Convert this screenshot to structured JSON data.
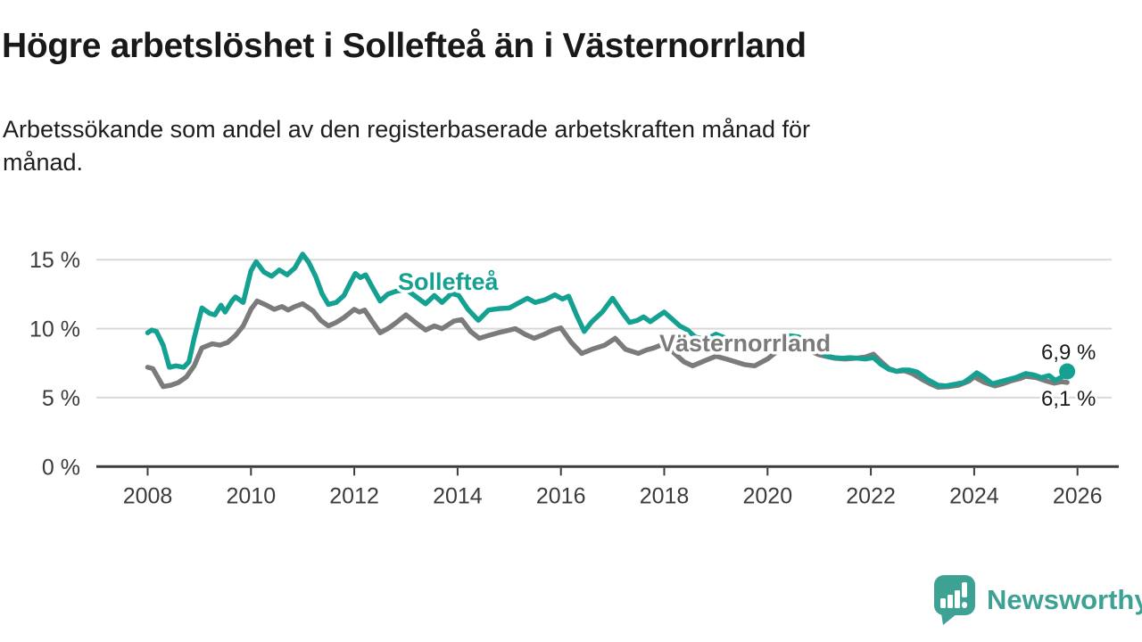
{
  "header": {
    "title": "Högre arbetslöshet i Sollefteå än i Västernorrland",
    "subtitle_line1": "Arbetssökande som andel av den registerbaserade arbetskraften månad för",
    "subtitle_line2": "månad."
  },
  "branding": {
    "logo_text": "Newsworthy",
    "logo_icon": "newsworthy-speech-bubble-bar-chart-icon",
    "logo_color": "#3da294"
  },
  "chart_data": {
    "type": "line",
    "title": "Högre arbetslöshet i Sollefteå än i Västernorrland",
    "subtitle": "Arbetssökande som andel av den registerbaserade arbetskraften månad för månad.",
    "unit": "%",
    "grid": true,
    "legend_position": "inline-labels",
    "xlim": [
      2008,
      2026.3
    ],
    "ylim": [
      0,
      16.8
    ],
    "x_axis": {
      "ticks": [
        2008,
        2010,
        2012,
        2014,
        2016,
        2018,
        2020,
        2022,
        2024,
        2026
      ],
      "tick_labels": [
        "2008",
        "2010",
        "2012",
        "2014",
        "2016",
        "2018",
        "2020",
        "2022",
        "2024",
        "2026"
      ]
    },
    "y_axis": {
      "ticks": [
        0,
        5,
        10,
        15
      ],
      "tick_labels": [
        "0 %",
        "5 %",
        "10 %",
        "15 %"
      ]
    },
    "colors": {
      "solleftea": "#14a191",
      "vasternorrland": "#7b7b7b",
      "gridline": "#d9d9d9",
      "axis": "#3c3c3c",
      "end_label_text": "#1b1b1b"
    },
    "series": [
      {
        "name": "Västernorrland",
        "color": "#7b7b7b",
        "end_label": "6,1 %",
        "end_dot": false,
        "points": [
          [
            2008.0,
            7.2
          ],
          [
            2008.1,
            7.1
          ],
          [
            2008.3,
            5.8
          ],
          [
            2008.45,
            5.9
          ],
          [
            2008.6,
            6.1
          ],
          [
            2008.75,
            6.5
          ],
          [
            2008.9,
            7.3
          ],
          [
            2009.05,
            8.6
          ],
          [
            2009.25,
            8.9
          ],
          [
            2009.4,
            8.8
          ],
          [
            2009.55,
            9.0
          ],
          [
            2009.7,
            9.5
          ],
          [
            2009.85,
            10.2
          ],
          [
            2010.0,
            11.4
          ],
          [
            2010.12,
            12.0
          ],
          [
            2010.3,
            11.7
          ],
          [
            2010.45,
            11.4
          ],
          [
            2010.6,
            11.6
          ],
          [
            2010.72,
            11.35
          ],
          [
            2010.85,
            11.6
          ],
          [
            2011.0,
            11.8
          ],
          [
            2011.2,
            11.3
          ],
          [
            2011.35,
            10.6
          ],
          [
            2011.5,
            10.2
          ],
          [
            2011.65,
            10.45
          ],
          [
            2011.8,
            10.8
          ],
          [
            2012.0,
            11.4
          ],
          [
            2012.1,
            11.2
          ],
          [
            2012.2,
            11.35
          ],
          [
            2012.35,
            10.5
          ],
          [
            2012.5,
            9.7
          ],
          [
            2012.65,
            10.0
          ],
          [
            2012.8,
            10.4
          ],
          [
            2013.0,
            11.0
          ],
          [
            2013.2,
            10.4
          ],
          [
            2013.38,
            9.9
          ],
          [
            2013.55,
            10.2
          ],
          [
            2013.7,
            10.0
          ],
          [
            2013.93,
            10.55
          ],
          [
            2014.08,
            10.65
          ],
          [
            2014.25,
            9.8
          ],
          [
            2014.42,
            9.3
          ],
          [
            2014.6,
            9.5
          ],
          [
            2014.78,
            9.7
          ],
          [
            2014.95,
            9.85
          ],
          [
            2015.12,
            10.0
          ],
          [
            2015.3,
            9.6
          ],
          [
            2015.48,
            9.3
          ],
          [
            2015.68,
            9.6
          ],
          [
            2015.85,
            9.9
          ],
          [
            2016.0,
            10.05
          ],
          [
            2016.2,
            9.0
          ],
          [
            2016.4,
            8.2
          ],
          [
            2016.6,
            8.5
          ],
          [
            2016.85,
            8.8
          ],
          [
            2017.05,
            9.3
          ],
          [
            2017.25,
            8.5
          ],
          [
            2017.5,
            8.2
          ],
          [
            2017.65,
            8.45
          ],
          [
            2017.8,
            8.6
          ],
          [
            2018.0,
            8.9
          ],
          [
            2018.2,
            8.2
          ],
          [
            2018.38,
            7.6
          ],
          [
            2018.55,
            7.3
          ],
          [
            2018.8,
            7.7
          ],
          [
            2019.0,
            8.0
          ],
          [
            2019.2,
            7.8
          ],
          [
            2019.55,
            7.4
          ],
          [
            2019.75,
            7.3
          ],
          [
            2020.0,
            7.8
          ],
          [
            2020.3,
            8.7
          ],
          [
            2020.5,
            8.9
          ],
          [
            2020.7,
            8.6
          ],
          [
            2021.0,
            8.1
          ],
          [
            2021.3,
            7.85
          ],
          [
            2021.5,
            7.8
          ],
          [
            2021.7,
            7.85
          ],
          [
            2021.9,
            7.95
          ],
          [
            2022.05,
            8.15
          ],
          [
            2022.2,
            7.6
          ],
          [
            2022.35,
            7.1
          ],
          [
            2022.5,
            6.9
          ],
          [
            2022.65,
            6.95
          ],
          [
            2022.8,
            6.75
          ],
          [
            2023.0,
            6.3
          ],
          [
            2023.15,
            6.0
          ],
          [
            2023.3,
            5.75
          ],
          [
            2023.5,
            5.8
          ],
          [
            2023.7,
            5.9
          ],
          [
            2023.9,
            6.2
          ],
          [
            2024.0,
            6.5
          ],
          [
            2024.2,
            6.1
          ],
          [
            2024.4,
            5.85
          ],
          [
            2024.55,
            6.0
          ],
          [
            2024.7,
            6.2
          ],
          [
            2024.9,
            6.4
          ],
          [
            2025.0,
            6.55
          ],
          [
            2025.2,
            6.45
          ],
          [
            2025.4,
            6.2
          ],
          [
            2025.55,
            6.05
          ],
          [
            2025.7,
            6.15
          ],
          [
            2025.8,
            6.1
          ]
        ]
      },
      {
        "name": "Sollefteå",
        "color": "#14a191",
        "end_label": "6,9 %",
        "end_dot": true,
        "points": [
          [
            2008.0,
            9.7
          ],
          [
            2008.08,
            9.9
          ],
          [
            2008.17,
            9.8
          ],
          [
            2008.3,
            8.8
          ],
          [
            2008.42,
            7.2
          ],
          [
            2008.55,
            7.3
          ],
          [
            2008.7,
            7.2
          ],
          [
            2008.8,
            7.6
          ],
          [
            2008.9,
            9.3
          ],
          [
            2009.05,
            11.5
          ],
          [
            2009.2,
            11.1
          ],
          [
            2009.3,
            11.0
          ],
          [
            2009.42,
            11.7
          ],
          [
            2009.5,
            11.2
          ],
          [
            2009.63,
            12.0
          ],
          [
            2009.7,
            12.3
          ],
          [
            2009.85,
            11.9
          ],
          [
            2010.0,
            14.2
          ],
          [
            2010.1,
            14.85
          ],
          [
            2010.25,
            14.1
          ],
          [
            2010.4,
            13.8
          ],
          [
            2010.55,
            14.25
          ],
          [
            2010.7,
            13.9
          ],
          [
            2010.85,
            14.4
          ],
          [
            2011.0,
            15.4
          ],
          [
            2011.12,
            14.8
          ],
          [
            2011.25,
            13.8
          ],
          [
            2011.38,
            12.5
          ],
          [
            2011.5,
            11.75
          ],
          [
            2011.65,
            11.9
          ],
          [
            2011.8,
            12.4
          ],
          [
            2011.92,
            13.3
          ],
          [
            2012.02,
            14.0
          ],
          [
            2012.12,
            13.7
          ],
          [
            2012.22,
            13.9
          ],
          [
            2012.35,
            13.0
          ],
          [
            2012.5,
            12.0
          ],
          [
            2012.65,
            12.5
          ],
          [
            2012.8,
            12.7
          ],
          [
            2013.0,
            12.85
          ],
          [
            2013.2,
            12.3
          ],
          [
            2013.38,
            11.8
          ],
          [
            2013.55,
            12.4
          ],
          [
            2013.7,
            11.9
          ],
          [
            2013.88,
            12.55
          ],
          [
            2014.02,
            12.4
          ],
          [
            2014.2,
            11.4
          ],
          [
            2014.4,
            10.6
          ],
          [
            2014.6,
            11.35
          ],
          [
            2014.8,
            11.45
          ],
          [
            2015.0,
            11.5
          ],
          [
            2015.2,
            11.9
          ],
          [
            2015.35,
            12.2
          ],
          [
            2015.5,
            11.9
          ],
          [
            2015.7,
            12.1
          ],
          [
            2015.88,
            12.45
          ],
          [
            2016.03,
            12.15
          ],
          [
            2016.15,
            12.35
          ],
          [
            2016.3,
            11.0
          ],
          [
            2016.45,
            9.8
          ],
          [
            2016.6,
            10.5
          ],
          [
            2016.8,
            11.2
          ],
          [
            2017.0,
            12.2
          ],
          [
            2017.18,
            11.2
          ],
          [
            2017.33,
            10.45
          ],
          [
            2017.48,
            10.6
          ],
          [
            2017.6,
            10.85
          ],
          [
            2017.73,
            10.5
          ],
          [
            2017.88,
            10.9
          ],
          [
            2018.0,
            11.2
          ],
          [
            2018.15,
            10.7
          ],
          [
            2018.3,
            10.2
          ],
          [
            2018.45,
            9.9
          ],
          [
            2018.6,
            9.4
          ],
          [
            2018.8,
            9.2
          ],
          [
            2019.0,
            9.6
          ],
          [
            2019.2,
            9.3
          ],
          [
            2019.4,
            8.9
          ],
          [
            2019.55,
            8.7
          ],
          [
            2019.75,
            8.8
          ],
          [
            2020.0,
            9.0
          ],
          [
            2020.2,
            9.3
          ],
          [
            2020.4,
            9.5
          ],
          [
            2020.6,
            9.4
          ],
          [
            2020.8,
            9.0
          ],
          [
            2021.0,
            8.5
          ],
          [
            2021.15,
            8.0
          ],
          [
            2021.3,
            7.9
          ],
          [
            2021.45,
            7.85
          ],
          [
            2021.6,
            7.9
          ],
          [
            2021.75,
            7.85
          ],
          [
            2021.9,
            7.8
          ],
          [
            2022.05,
            7.9
          ],
          [
            2022.2,
            7.4
          ],
          [
            2022.35,
            7.05
          ],
          [
            2022.5,
            6.9
          ],
          [
            2022.6,
            7.0
          ],
          [
            2022.75,
            7.0
          ],
          [
            2022.9,
            6.85
          ],
          [
            2023.1,
            6.3
          ],
          [
            2023.3,
            5.9
          ],
          [
            2023.45,
            5.85
          ],
          [
            2023.6,
            5.95
          ],
          [
            2023.8,
            6.1
          ],
          [
            2023.95,
            6.5
          ],
          [
            2024.05,
            6.8
          ],
          [
            2024.2,
            6.45
          ],
          [
            2024.35,
            6.0
          ],
          [
            2024.5,
            6.15
          ],
          [
            2024.65,
            6.3
          ],
          [
            2024.8,
            6.45
          ],
          [
            2025.0,
            6.75
          ],
          [
            2025.15,
            6.65
          ],
          [
            2025.3,
            6.45
          ],
          [
            2025.45,
            6.6
          ],
          [
            2025.57,
            6.25
          ],
          [
            2025.7,
            6.5
          ],
          [
            2025.8,
            6.9
          ]
        ]
      }
    ]
  }
}
